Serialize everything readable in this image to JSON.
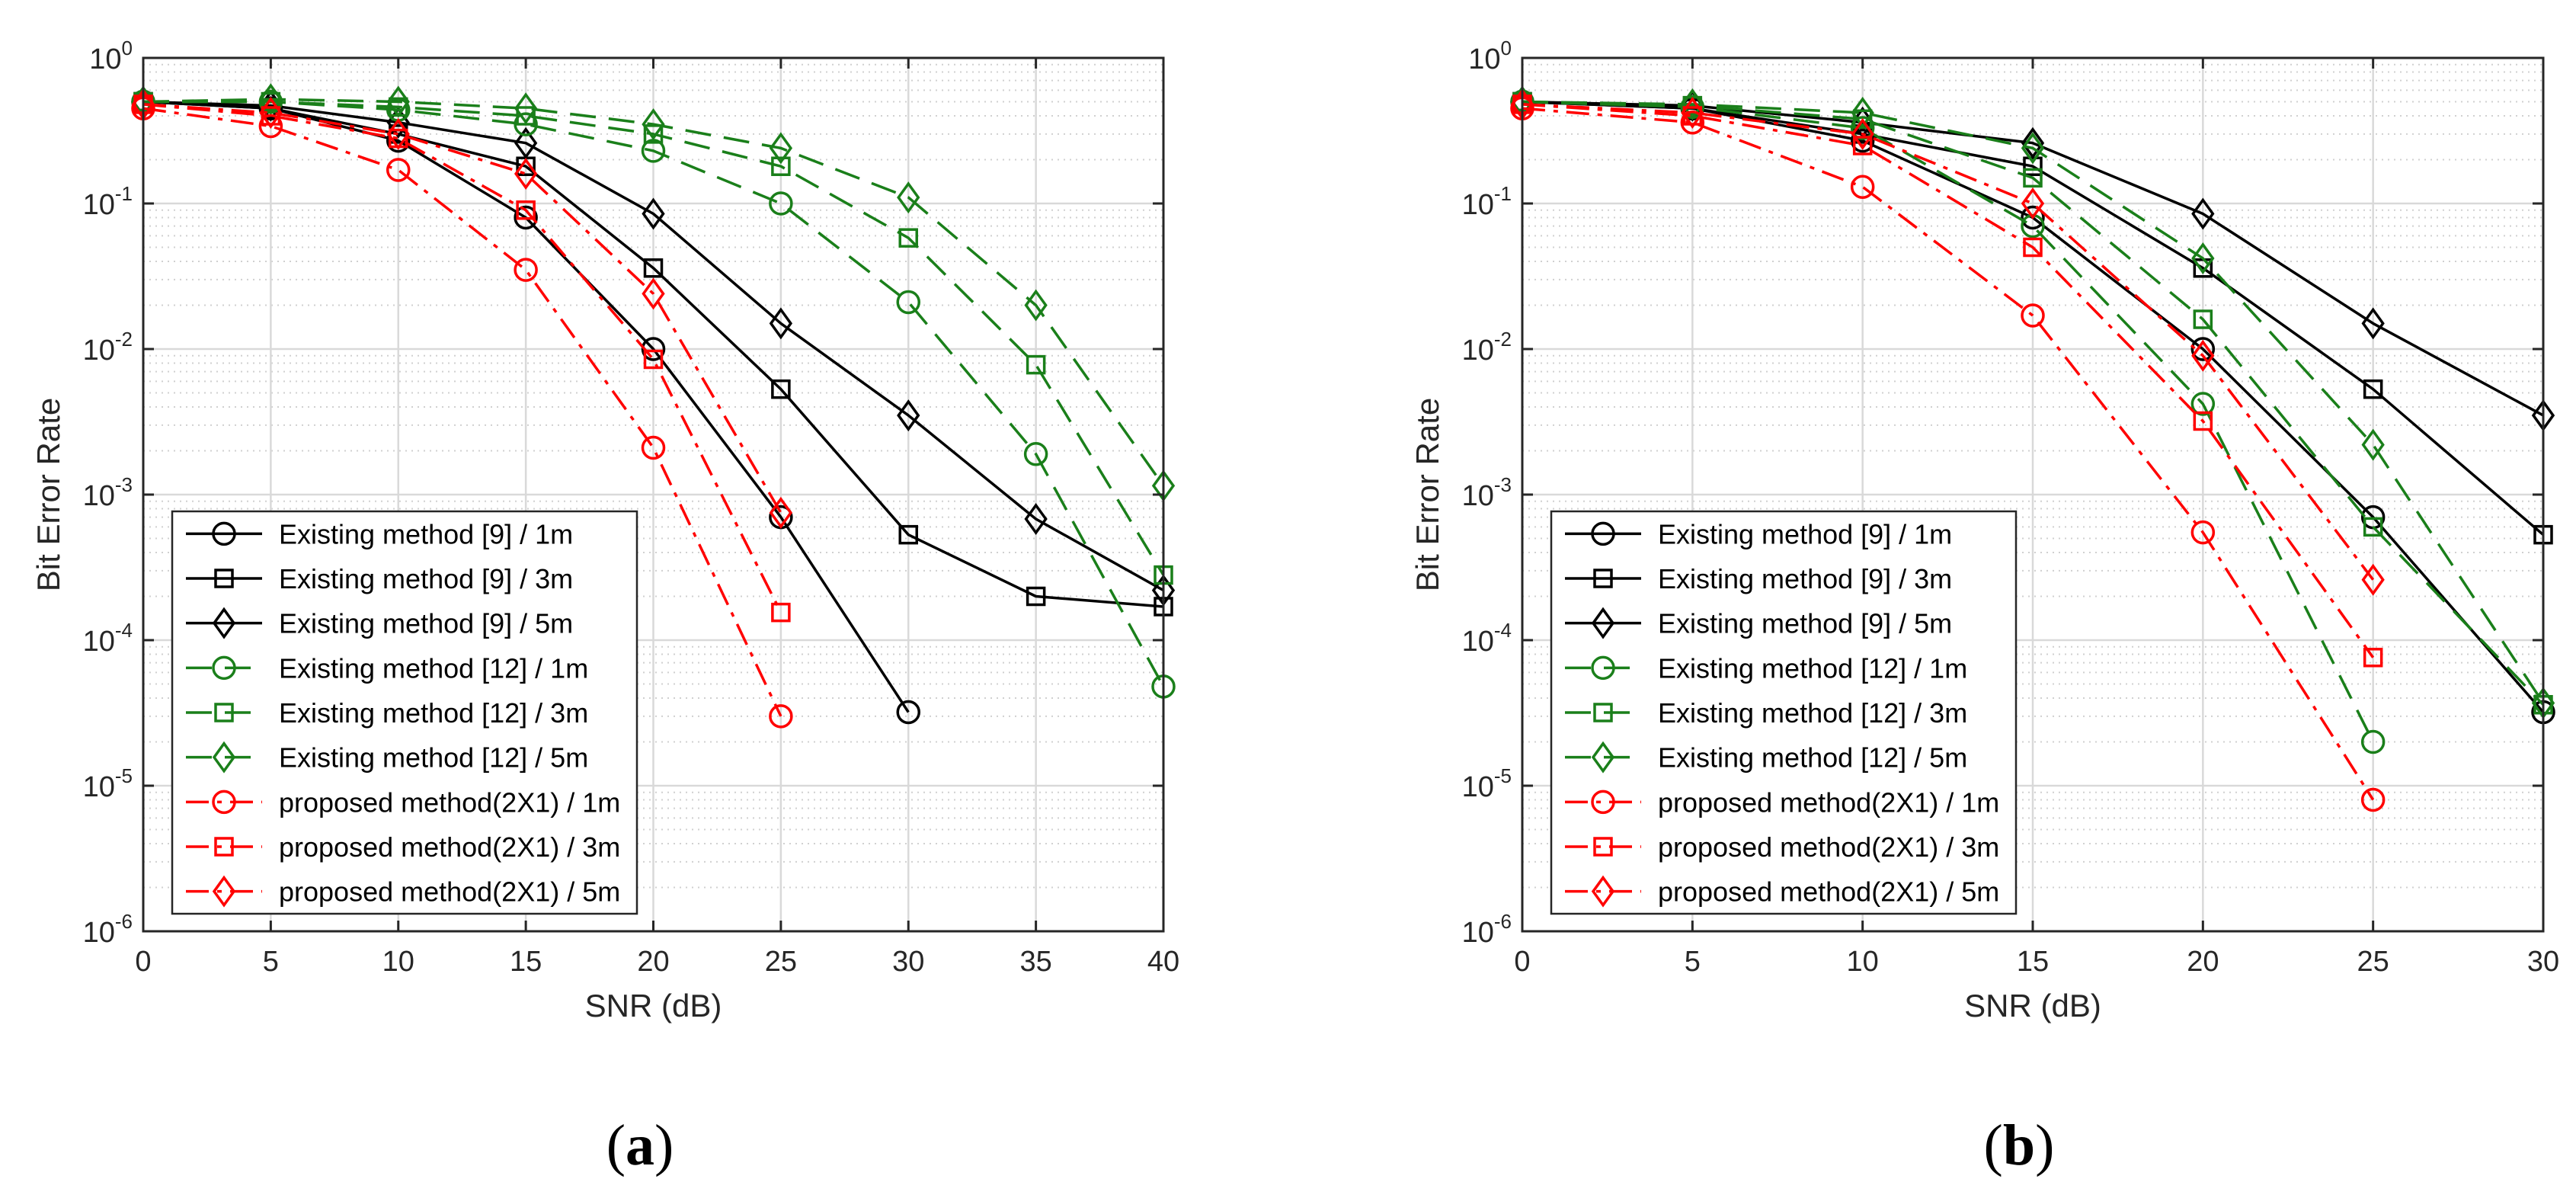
{
  "colors": {
    "existing9": "#000000",
    "existing12": "#1a7f1a",
    "proposed": "#ff0000",
    "grid_major": "#d9d9d9",
    "grid_minor": "#d0d0d0"
  },
  "chart_data": [
    {
      "type": "line",
      "caption_label": "a",
      "xlabel": "SNR (dB)",
      "ylabel": "Bit Error Rate",
      "yscale": "log",
      "xlim": [
        0,
        40
      ],
      "ylim": [
        1e-06,
        1
      ],
      "xticks": [
        0,
        5,
        10,
        15,
        20,
        25,
        30,
        35,
        40
      ],
      "xtick_labels": [
        "0",
        "5",
        "10",
        "15",
        "20",
        "25",
        "30",
        "35",
        "40"
      ],
      "yticks": [
        {
          "value": 1,
          "base": "10",
          "exp": "0"
        },
        {
          "value": 0.1,
          "base": "10",
          "exp": "-1"
        },
        {
          "value": 0.01,
          "base": "10",
          "exp": "-2"
        },
        {
          "value": 0.001,
          "base": "10",
          "exp": "-3"
        },
        {
          "value": 0.0001,
          "base": "10",
          "exp": "-4"
        },
        {
          "value": 1e-05,
          "base": "10",
          "exp": "-5"
        },
        {
          "value": 1e-06,
          "base": "10",
          "exp": "-6"
        }
      ],
      "grid": true,
      "legend_position": "bottom-left",
      "series": [
        {
          "name": "Existing method [9] / 1m",
          "group": "existing9",
          "marker": "circle",
          "x": [
            0,
            5,
            10,
            15,
            20,
            25,
            30
          ],
          "y": [
            0.5,
            0.45,
            0.27,
            0.08,
            0.01,
            0.0007,
            3.2e-05
          ]
        },
        {
          "name": "Existing method [9] / 3m",
          "group": "existing9",
          "marker": "square",
          "x": [
            0,
            5,
            10,
            15,
            20,
            25,
            30,
            35,
            40
          ],
          "y": [
            0.5,
            0.45,
            0.3,
            0.18,
            0.036,
            0.0053,
            0.00053,
            0.0002,
            0.00017
          ]
        },
        {
          "name": "Existing method [9] / 5m",
          "group": "existing9",
          "marker": "diamond",
          "x": [
            0,
            5,
            10,
            15,
            20,
            25,
            30,
            35,
            40
          ],
          "y": [
            0.5,
            0.47,
            0.36,
            0.26,
            0.085,
            0.015,
            0.0035,
            0.00068,
            0.00022
          ]
        },
        {
          "name": "Existing method [12] / 1m",
          "group": "existing12",
          "marker": "circle",
          "x": [
            0,
            5,
            10,
            15,
            20,
            25,
            30,
            35,
            40
          ],
          "y": [
            0.5,
            0.5,
            0.44,
            0.35,
            0.23,
            0.1,
            0.021,
            0.0019,
            4.8e-05
          ]
        },
        {
          "name": "Existing method [12] / 3m",
          "group": "existing12",
          "marker": "square",
          "x": [
            0,
            5,
            10,
            15,
            20,
            25,
            30,
            35,
            40
          ],
          "y": [
            0.5,
            0.5,
            0.46,
            0.4,
            0.3,
            0.18,
            0.058,
            0.0078,
            0.00028
          ]
        },
        {
          "name": "Existing method [12] / 5m",
          "group": "existing12",
          "marker": "diamond",
          "x": [
            0,
            5,
            10,
            15,
            20,
            25,
            30,
            35,
            40
          ],
          "y": [
            0.5,
            0.52,
            0.5,
            0.45,
            0.35,
            0.24,
            0.11,
            0.02,
            0.00115
          ]
        },
        {
          "name": "proposed method(2X1) / 1m",
          "group": "proposed",
          "marker": "circle",
          "x": [
            0,
            5,
            10,
            15,
            20,
            25
          ],
          "y": [
            0.45,
            0.34,
            0.17,
            0.035,
            0.0021,
            3e-05
          ]
        },
        {
          "name": "proposed method(2X1) / 3m",
          "group": "proposed",
          "marker": "square",
          "x": [
            0,
            5,
            10,
            15,
            20,
            25
          ],
          "y": [
            0.48,
            0.4,
            0.28,
            0.09,
            0.0085,
            0.000155
          ]
        },
        {
          "name": "proposed method(2X1) / 5m",
          "group": "proposed",
          "marker": "diamond",
          "x": [
            0,
            5,
            10,
            15,
            20,
            25
          ],
          "y": [
            0.48,
            0.42,
            0.3,
            0.16,
            0.024,
            0.00075
          ]
        }
      ]
    },
    {
      "type": "line",
      "caption_label": "b",
      "xlabel": "SNR (dB)",
      "ylabel": "Bit Error Rate",
      "yscale": "log",
      "xlim": [
        0,
        30
      ],
      "ylim": [
        1e-06,
        1
      ],
      "xticks": [
        0,
        5,
        10,
        15,
        20,
        25,
        30
      ],
      "xtick_labels": [
        "0",
        "5",
        "10",
        "15",
        "20",
        "25",
        "30"
      ],
      "yticks": [
        {
          "value": 1,
          "base": "10",
          "exp": "0"
        },
        {
          "value": 0.1,
          "base": "10",
          "exp": "-1"
        },
        {
          "value": 0.01,
          "base": "10",
          "exp": "-2"
        },
        {
          "value": 0.001,
          "base": "10",
          "exp": "-3"
        },
        {
          "value": 0.0001,
          "base": "10",
          "exp": "-4"
        },
        {
          "value": 1e-05,
          "base": "10",
          "exp": "-5"
        },
        {
          "value": 1e-06,
          "base": "10",
          "exp": "-6"
        }
      ],
      "grid": true,
      "legend_position": "bottom-left",
      "series": [
        {
          "name": "Existing method [9] / 1m",
          "group": "existing9",
          "marker": "circle",
          "x": [
            0,
            5,
            10,
            15,
            20,
            25,
            30
          ],
          "y": [
            0.5,
            0.45,
            0.27,
            0.08,
            0.01,
            0.0007,
            3.2e-05
          ]
        },
        {
          "name": "Existing method [9] / 3m",
          "group": "existing9",
          "marker": "square",
          "x": [
            0,
            5,
            10,
            15,
            20,
            25,
            30
          ],
          "y": [
            0.5,
            0.45,
            0.3,
            0.18,
            0.036,
            0.0053,
            0.00053
          ]
        },
        {
          "name": "Existing method [9] / 5m",
          "group": "existing9",
          "marker": "diamond",
          "x": [
            0,
            5,
            10,
            15,
            20,
            25,
            30
          ],
          "y": [
            0.5,
            0.47,
            0.36,
            0.26,
            0.085,
            0.015,
            0.0035
          ]
        },
        {
          "name": "Existing method [12] / 1m",
          "group": "existing12",
          "marker": "circle",
          "x": [
            0,
            5,
            10,
            15,
            20,
            25
          ],
          "y": [
            0.5,
            0.46,
            0.33,
            0.07,
            0.0042,
            2e-05
          ]
        },
        {
          "name": "Existing method [12] / 3m",
          "group": "existing12",
          "marker": "square",
          "x": [
            0,
            5,
            10,
            15,
            20,
            25,
            30
          ],
          "y": [
            0.5,
            0.47,
            0.38,
            0.15,
            0.016,
            0.0006,
            3.6e-05
          ]
        },
        {
          "name": "Existing method [12] / 5m",
          "group": "existing12",
          "marker": "diamond",
          "x": [
            0,
            5,
            10,
            15,
            20,
            25,
            30
          ],
          "y": [
            0.5,
            0.48,
            0.42,
            0.24,
            0.042,
            0.0022,
            3.7e-05
          ]
        },
        {
          "name": "proposed method(2X1) / 1m",
          "group": "proposed",
          "marker": "circle",
          "x": [
            0,
            5,
            10,
            15,
            20,
            25
          ],
          "y": [
            0.45,
            0.36,
            0.13,
            0.017,
            0.00055,
            8e-06
          ]
        },
        {
          "name": "proposed method(2X1) / 3m",
          "group": "proposed",
          "marker": "square",
          "x": [
            0,
            5,
            10,
            15,
            20,
            25
          ],
          "y": [
            0.48,
            0.4,
            0.25,
            0.05,
            0.0032,
            7.6e-05
          ]
        },
        {
          "name": "proposed method(2X1) / 5m",
          "group": "proposed",
          "marker": "diamond",
          "x": [
            0,
            5,
            10,
            15,
            20,
            25
          ],
          "y": [
            0.48,
            0.42,
            0.3,
            0.1,
            0.009,
            0.00026
          ]
        }
      ]
    }
  ]
}
